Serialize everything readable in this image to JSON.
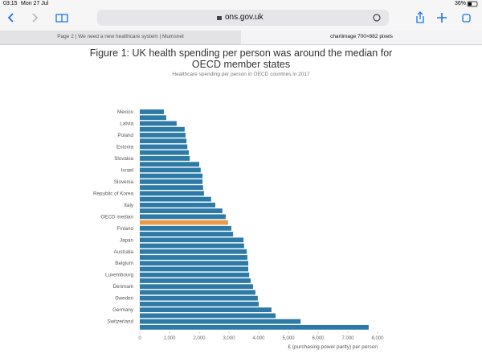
{
  "status_bar": {
    "time": "03:15",
    "date": "Mon 27 Jul",
    "battery": "36%"
  },
  "address_bar": {
    "url": "ons.gov.uk"
  },
  "tabs": [
    "Page 2 | We need a new healthcare system | Mumsnet",
    "chartimage 700×882 pixels"
  ],
  "chart_data": {
    "type": "bar",
    "orientation": "horizontal",
    "title": "Figure 1: UK health spending per person was around the median for OECD member states",
    "subtitle": "Healthcare spending per person in OECD countries in 2017",
    "x_label": "£ (purchasing power parity) per person",
    "categories": [
      "Mexico",
      null,
      "Latvia",
      null,
      "Poland",
      null,
      "Estonia",
      null,
      "Slovakia",
      null,
      "Israel",
      null,
      "Slovenia",
      null,
      "Republic of Korea",
      null,
      "Italy",
      null,
      "OECD median",
      null,
      "Finland",
      null,
      "Japan",
      null,
      "Australia",
      null,
      "Belgium",
      null,
      "Luxembourg",
      null,
      "Denmark",
      null,
      "Sweden",
      null,
      "Germany",
      null,
      "Switzerland",
      null
    ],
    "values": [
      810,
      890,
      1240,
      1510,
      1540,
      1570,
      1600,
      1650,
      1680,
      2000,
      2050,
      2110,
      2110,
      2130,
      2160,
      2400,
      2540,
      2780,
      2890,
      2970,
      3080,
      3140,
      3490,
      3510,
      3600,
      3620,
      3650,
      3650,
      3680,
      3730,
      3810,
      3890,
      3970,
      4000,
      4430,
      4570,
      5410,
      7700
    ],
    "colors": [
      "#2e7aa6",
      "#2e7aa6",
      "#2e7aa6",
      "#2e7aa6",
      "#2e7aa6",
      "#2e7aa6",
      "#2e7aa6",
      "#2e7aa6",
      "#2e7aa6",
      "#2e7aa6",
      "#2e7aa6",
      "#2e7aa6",
      "#2e7aa6",
      "#2e7aa6",
      "#2e7aa6",
      "#2e7aa6",
      "#2e7aa6",
      "#2e7aa6",
      "#2e7aa6",
      "#e8994a",
      "#2e7aa6",
      "#2e7aa6",
      "#2e7aa6",
      "#2e7aa6",
      "#2e7aa6",
      "#2e7aa6",
      "#2e7aa6",
      "#2e7aa6",
      "#2e7aa6",
      "#2e7aa6",
      "#2e7aa6",
      "#2e7aa6",
      "#2e7aa6",
      "#2e7aa6",
      "#2e7aa6",
      "#2e7aa6",
      "#2e7aa6",
      "#2e7aa6"
    ],
    "xlim": [
      0,
      8000
    ],
    "xticks": [
      0,
      {
        "value": 1000,
        "label": "1,000"
      },
      {
        "value": 2000,
        "label": "2,000"
      },
      {
        "value": 3000,
        "label": "3,000"
      },
      {
        "value": 4000,
        "label": "4,000"
      },
      {
        "value": 5000,
        "label": "5,000"
      },
      {
        "value": 6000,
        "label": "6,000"
      },
      {
        "value": 7000,
        "label": "7,000"
      },
      {
        "value": 8000,
        "label": "8,000"
      }
    ],
    "grid": false
  }
}
